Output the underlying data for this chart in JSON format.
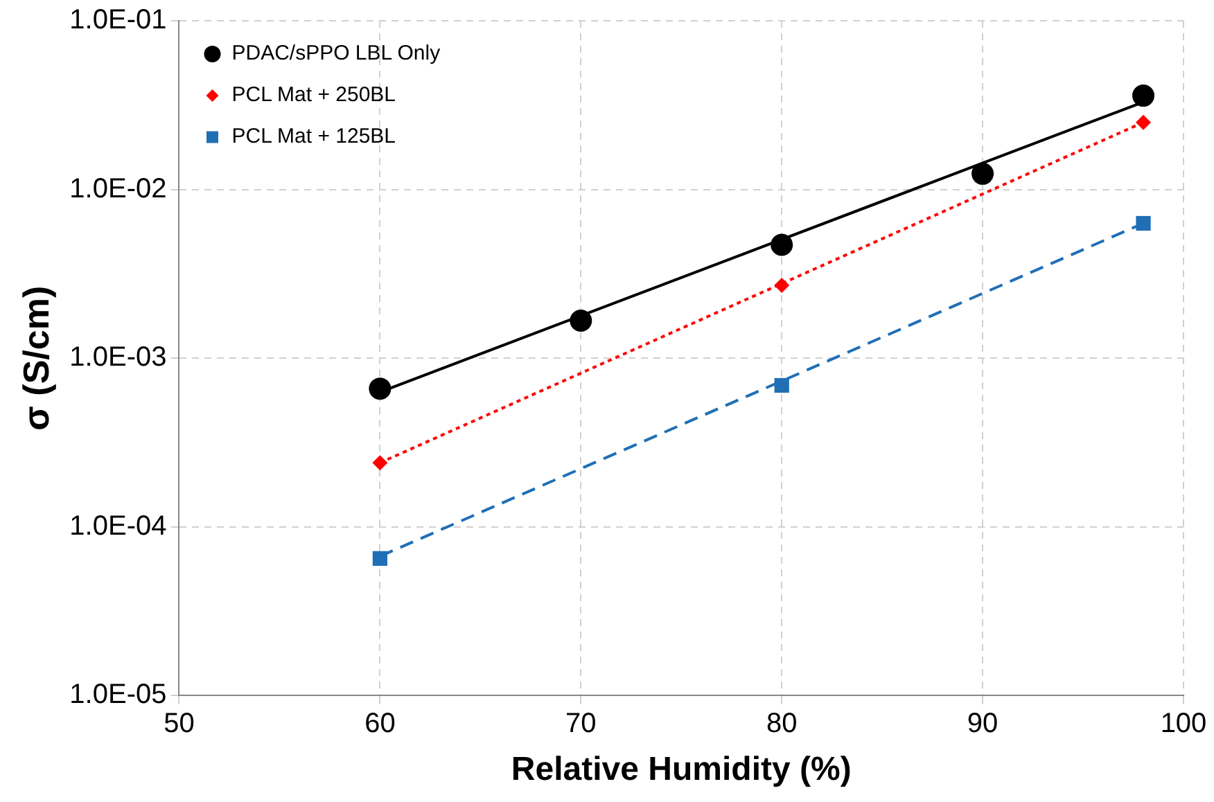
{
  "chart_data": {
    "type": "scatter",
    "xlabel": "Relative Humidity (%)",
    "ylabel": "σ (S/cm)",
    "log": "y",
    "xlim": [
      50,
      100
    ],
    "xticks": [
      50,
      60,
      70,
      80,
      90,
      100
    ],
    "ylim": [
      1e-05,
      0.1
    ],
    "yticks": [
      {
        "value": 1e-05,
        "label": "1.0E-05"
      },
      {
        "value": 0.0001,
        "label": "1.0E-04"
      },
      {
        "value": 0.001,
        "label": "1.0E-03"
      },
      {
        "value": 0.01,
        "label": "1.0E-02"
      },
      {
        "value": 0.1,
        "label": "1.0E-01"
      }
    ],
    "grid": true,
    "legend": "top left",
    "series": [
      {
        "name": "PDAC/sPPO LBL Only",
        "marker": "circle",
        "color": "#000000",
        "x": [
          60,
          70,
          80,
          90,
          98
        ],
        "values": [
          0.00066,
          0.00167,
          0.0047,
          0.0124,
          0.036
        ]
      },
      {
        "name": "PCL Mat + 250BL",
        "marker": "diamond",
        "color": "#ff0000",
        "x": [
          60,
          80,
          98
        ],
        "values": [
          0.00024,
          0.0027,
          0.025
        ]
      },
      {
        "name": "PCL Mat + 125BL",
        "marker": "square",
        "color": "#1f6fb5",
        "x": [
          60,
          80,
          98
        ],
        "values": [
          6.5e-05,
          0.00069,
          0.0063
        ]
      },
      {
        "type": "line",
        "marker": "none",
        "line_style": "solid",
        "color": "#000000",
        "x": [
          60,
          98
        ],
        "values": [
          0.00063,
          0.033
        ]
      },
      {
        "type": "line",
        "marker": "none",
        "line_style": "dotted",
        "color": "#ff0000",
        "x": [
          60,
          98
        ],
        "values": [
          0.00024,
          0.025
        ]
      },
      {
        "type": "line",
        "marker": "none",
        "line_style": "dashed",
        "color": "#1f6fb5",
        "x": [
          60,
          98
        ],
        "values": [
          6.7e-05,
          0.0063
        ]
      }
    ]
  }
}
